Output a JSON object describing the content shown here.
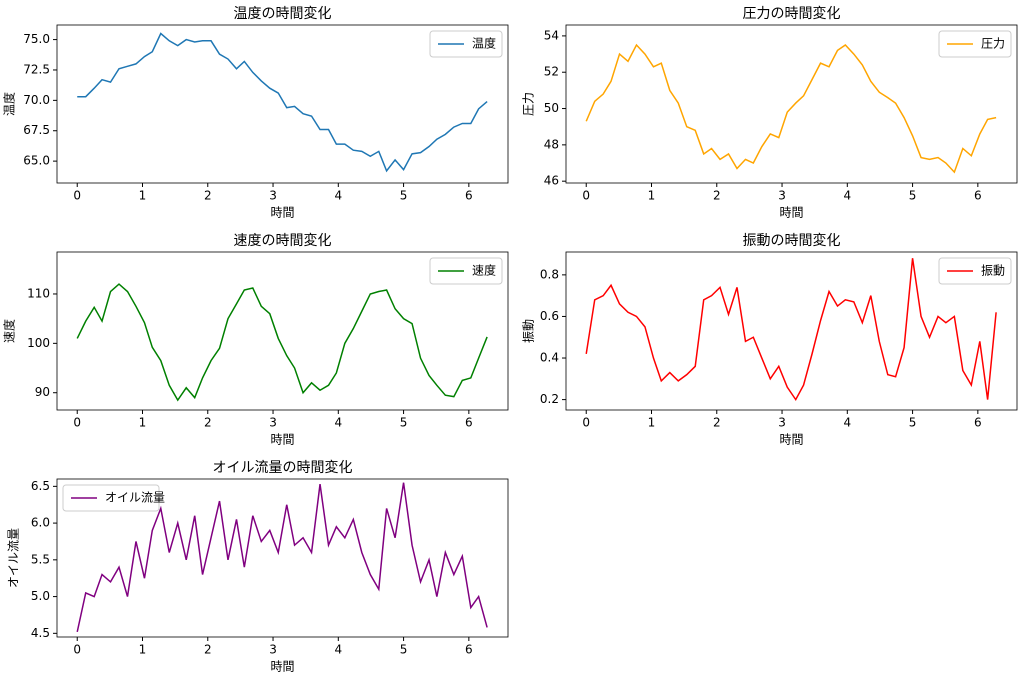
{
  "chart_data": [
    {
      "type": "line",
      "title": "温度の時間変化",
      "xlabel": "時間",
      "ylabel": "温度",
      "legend": "upper right",
      "x": [
        0,
        0.13,
        0.26,
        0.38,
        0.51,
        0.64,
        0.77,
        0.9,
        1.03,
        1.15,
        1.28,
        1.41,
        1.54,
        1.67,
        1.8,
        1.92,
        2.05,
        2.18,
        2.31,
        2.44,
        2.56,
        2.69,
        2.82,
        2.95,
        3.08,
        3.21,
        3.33,
        3.46,
        3.59,
        3.72,
        3.85,
        3.97,
        4.1,
        4.23,
        4.36,
        4.49,
        4.62,
        4.74,
        4.87,
        5.0,
        5.13,
        5.26,
        5.39,
        5.51,
        5.64,
        5.77,
        5.9,
        6.03,
        6.15,
        6.28
      ],
      "series": [
        {
          "name": "温度",
          "color": "#1f77b4",
          "values": [
            70.3,
            70.3,
            71.0,
            71.7,
            71.5,
            72.6,
            72.8,
            73.0,
            73.6,
            74.0,
            75.5,
            74.9,
            74.5,
            75.0,
            74.8,
            74.9,
            74.9,
            73.8,
            73.4,
            72.6,
            73.2,
            72.3,
            71.6,
            71.0,
            70.6,
            69.4,
            69.5,
            68.9,
            68.7,
            67.6,
            67.6,
            66.4,
            66.4,
            65.9,
            65.8,
            65.4,
            65.8,
            64.2,
            65.1,
            64.3,
            65.6,
            65.7,
            66.2,
            66.8,
            67.2,
            67.8,
            68.1,
            68.1,
            69.3,
            69.9
          ]
        }
      ],
      "xlim": [
        -0.31,
        6.6
      ],
      "ylim": [
        63.2,
        76.2
      ],
      "xticks": [
        0,
        1,
        2,
        3,
        4,
        5,
        6
      ],
      "yticks": [
        {
          "value": 65,
          "label": "65.0"
        },
        67.5,
        {
          "value": 70,
          "label": "70.0"
        },
        72.5,
        {
          "value": 75,
          "label": "75.0"
        }
      ]
    },
    {
      "type": "line",
      "title": "圧力の時間変化",
      "xlabel": "時間",
      "ylabel": "圧力",
      "legend": "upper right",
      "x": [
        0,
        0.13,
        0.26,
        0.38,
        0.51,
        0.64,
        0.77,
        0.9,
        1.03,
        1.15,
        1.28,
        1.41,
        1.54,
        1.67,
        1.8,
        1.92,
        2.05,
        2.18,
        2.31,
        2.44,
        2.56,
        2.69,
        2.82,
        2.95,
        3.08,
        3.21,
        3.33,
        3.46,
        3.59,
        3.72,
        3.85,
        3.97,
        4.1,
        4.23,
        4.36,
        4.49,
        4.62,
        4.74,
        4.87,
        5.0,
        5.13,
        5.26,
        5.39,
        5.51,
        5.64,
        5.77,
        5.9,
        6.03,
        6.15,
        6.28
      ],
      "series": [
        {
          "name": "圧力",
          "color": "#ffa500",
          "values": [
            49.3,
            50.4,
            50.8,
            51.5,
            53.0,
            52.6,
            53.5,
            53.0,
            52.3,
            52.5,
            51.0,
            50.3,
            49.0,
            48.8,
            47.5,
            47.8,
            47.2,
            47.5,
            46.7,
            47.2,
            47.0,
            47.9,
            48.6,
            48.4,
            49.8,
            50.3,
            50.7,
            51.6,
            52.5,
            52.3,
            53.2,
            53.5,
            53.0,
            52.4,
            51.5,
            50.9,
            50.6,
            50.3,
            49.5,
            48.5,
            47.3,
            47.2,
            47.3,
            47.0,
            46.5,
            47.8,
            47.4,
            48.6,
            49.4,
            49.5
          ]
        }
      ],
      "xlim": [
        -0.31,
        6.6
      ],
      "ylim": [
        45.9,
        54.6
      ],
      "xticks": [
        0,
        1,
        2,
        3,
        4,
        5,
        6
      ],
      "yticks": [
        46,
        48,
        50,
        52,
        54
      ]
    },
    {
      "type": "line",
      "title": "速度の時間変化",
      "xlabel": "時間",
      "ylabel": "速度",
      "legend": "upper right",
      "x": [
        0,
        0.13,
        0.26,
        0.38,
        0.51,
        0.64,
        0.77,
        0.9,
        1.03,
        1.15,
        1.28,
        1.41,
        1.54,
        1.67,
        1.8,
        1.92,
        2.05,
        2.18,
        2.31,
        2.44,
        2.56,
        2.69,
        2.82,
        2.95,
        3.08,
        3.21,
        3.33,
        3.46,
        3.59,
        3.72,
        3.85,
        3.97,
        4.1,
        4.23,
        4.36,
        4.49,
        4.62,
        4.74,
        4.87,
        5.0,
        5.13,
        5.26,
        5.39,
        5.51,
        5.64,
        5.77,
        5.9,
        6.03,
        6.15,
        6.28
      ],
      "series": [
        {
          "name": "速度",
          "color": "#008000",
          "values": [
            101,
            104.5,
            107.3,
            104.5,
            110.5,
            112,
            110.5,
            107.5,
            104.2,
            99.2,
            96.5,
            91.5,
            88.5,
            91,
            89,
            93,
            96.5,
            99,
            105,
            108,
            110.8,
            111.2,
            107.5,
            106,
            101,
            97.5,
            95,
            90,
            92,
            90.5,
            91.5,
            94,
            100,
            103,
            106.5,
            110,
            110.5,
            110.8,
            107,
            105,
            104,
            97,
            93.5,
            91.5,
            89.5,
            89.2,
            92.5,
            93,
            97,
            101.3
          ]
        }
      ],
      "xlim": [
        -0.31,
        6.6
      ],
      "ylim": [
        86.5,
        118.5
      ],
      "xticks": [
        0,
        1,
        2,
        3,
        4,
        5,
        6
      ],
      "yticks": [
        90,
        100,
        110
      ]
    },
    {
      "type": "line",
      "title": "振動の時間変化",
      "xlabel": "時間",
      "ylabel": "振動",
      "legend": "upper right",
      "x": [
        0,
        0.13,
        0.26,
        0.38,
        0.51,
        0.64,
        0.77,
        0.9,
        1.03,
        1.15,
        1.28,
        1.41,
        1.54,
        1.67,
        1.8,
        1.92,
        2.05,
        2.18,
        2.31,
        2.44,
        2.56,
        2.69,
        2.82,
        2.95,
        3.08,
        3.21,
        3.33,
        3.46,
        3.59,
        3.72,
        3.85,
        3.97,
        4.1,
        4.23,
        4.36,
        4.49,
        4.62,
        4.74,
        4.87,
        5.0,
        5.13,
        5.26,
        5.39,
        5.51,
        5.64,
        5.77,
        5.9,
        6.03,
        6.15,
        6.28
      ],
      "series": [
        {
          "name": "振動",
          "color": "#ff0000",
          "values": [
            0.42,
            0.68,
            0.7,
            0.75,
            0.66,
            0.62,
            0.6,
            0.55,
            0.4,
            0.29,
            0.33,
            0.29,
            0.32,
            0.36,
            0.68,
            0.7,
            0.74,
            0.61,
            0.74,
            0.48,
            0.5,
            0.4,
            0.3,
            0.36,
            0.26,
            0.2,
            0.27,
            0.42,
            0.58,
            0.72,
            0.65,
            0.68,
            0.67,
            0.57,
            0.7,
            0.48,
            0.32,
            0.31,
            0.45,
            0.88,
            0.6,
            0.5,
            0.6,
            0.57,
            0.6,
            0.34,
            0.27,
            0.48,
            0.2,
            0.62
          ]
        }
      ],
      "xlim": [
        -0.31,
        6.6
      ],
      "ylim": [
        0.15,
        0.91
      ],
      "xticks": [
        0,
        1,
        2,
        3,
        4,
        5,
        6
      ],
      "yticks": [
        0.2,
        0.4,
        0.6,
        0.8
      ]
    },
    {
      "type": "line",
      "title": "オイル流量の時間変化",
      "xlabel": "時間",
      "ylabel": "オイル流量",
      "legend": "upper left",
      "x": [
        0,
        0.13,
        0.26,
        0.38,
        0.51,
        0.64,
        0.77,
        0.9,
        1.03,
        1.15,
        1.28,
        1.41,
        1.54,
        1.67,
        1.8,
        1.92,
        2.05,
        2.18,
        2.31,
        2.44,
        2.56,
        2.69,
        2.82,
        2.95,
        3.08,
        3.21,
        3.33,
        3.46,
        3.59,
        3.72,
        3.85,
        3.97,
        4.1,
        4.23,
        4.36,
        4.49,
        4.62,
        4.74,
        4.87,
        5.0,
        5.13,
        5.26,
        5.39,
        5.51,
        5.64,
        5.77,
        5.9,
        6.03,
        6.15,
        6.28
      ],
      "series": [
        {
          "name": "オイル流量",
          "color": "#800080",
          "values": [
            4.52,
            5.05,
            5.0,
            5.3,
            5.2,
            5.4,
            5.0,
            5.75,
            5.25,
            5.9,
            6.2,
            5.6,
            6.0,
            5.5,
            6.1,
            5.3,
            5.8,
            6.3,
            5.5,
            6.05,
            5.4,
            6.1,
            5.75,
            5.9,
            5.6,
            6.25,
            5.7,
            5.8,
            5.6,
            6.53,
            5.7,
            5.95,
            5.8,
            6.05,
            5.6,
            5.3,
            5.1,
            6.2,
            5.8,
            6.55,
            5.7,
            5.2,
            5.5,
            5.0,
            5.6,
            5.3,
            5.55,
            4.85,
            5.0,
            4.58
          ]
        }
      ],
      "xlim": [
        -0.31,
        6.6
      ],
      "ylim": [
        4.45,
        6.6
      ],
      "xticks": [
        0,
        1,
        2,
        3,
        4,
        5,
        6
      ],
      "yticks": [
        {
          "value": 4.5,
          "label": "4.5"
        },
        {
          "value": 5,
          "label": "5.0"
        },
        5.5,
        {
          "value": 6,
          "label": "6.0"
        },
        6.5
      ]
    }
  ]
}
